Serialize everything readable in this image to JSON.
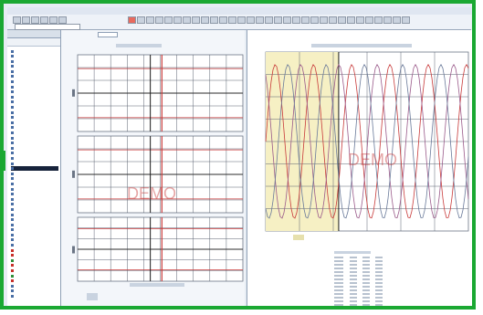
{
  "overlay": {
    "demo_text": "DEMO"
  },
  "colors": {
    "frame": "#1aa832",
    "plot_line": "#c83a3a",
    "grid": "#5a6270",
    "highlight": "#f6f0c4"
  }
}
